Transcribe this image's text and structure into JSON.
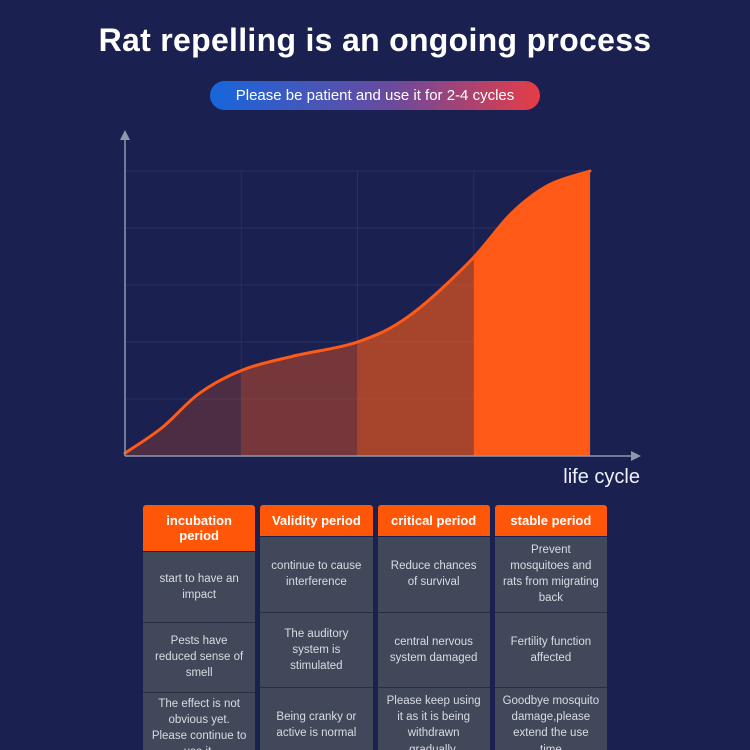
{
  "page": {
    "title": "Rat repelling is an ongoing process",
    "badge": "Please be patient and use it for 2-4 cycles"
  },
  "chart_data": {
    "type": "area",
    "title": "",
    "xlabel": "life cycle",
    "ylabel": "",
    "x": [
      0,
      8,
      16,
      25,
      36,
      50,
      61,
      74,
      83,
      91,
      100
    ],
    "values": [
      1,
      10,
      22,
      30,
      35,
      40,
      49,
      68,
      85,
      95,
      100
    ],
    "xlim": [
      0,
      100
    ],
    "ylim": [
      0,
      100
    ],
    "grid": true,
    "band_bounds": [
      0,
      25,
      50,
      75,
      100
    ],
    "band_opacities": [
      0.22,
      0.4,
      0.62,
      1
    ],
    "band_labels": [
      "incubation period",
      "Validity period",
      "critical period",
      "stable period"
    ],
    "line_color": "#ff5a17",
    "area_color": "#ff5a17",
    "grid_color": "#273162",
    "axis_color": "#8f97ab"
  },
  "table": {
    "columns": [
      {
        "header": "incubation period",
        "cells": [
          "start to have an impact",
          "Pests have reduced sense of smell",
          "The effect is not obvious yet. Please continue to use it."
        ]
      },
      {
        "header": "Validity period",
        "cells": [
          "continue to cause interference",
          "The auditory system is stimulated",
          "Being cranky or active is normal"
        ]
      },
      {
        "header": "critical period",
        "cells": [
          "Reduce chances of survival",
          "central nervous system damaged",
          "Please keep using it as it is being withdrawn gradually."
        ]
      },
      {
        "header": "stable period",
        "cells": [
          "Prevent mosquitoes and rats from migrating back",
          "Fertility function affected",
          "Goodbye mosquito damage,please extend the use time"
        ]
      }
    ]
  },
  "colors": {
    "background": "#1a2150",
    "header_orange": "#ff5608",
    "cell_bg": "#414859",
    "badge_blue": "#1766dd",
    "badge_red": "#e63c46",
    "curve_orange": "#ff5a17"
  }
}
